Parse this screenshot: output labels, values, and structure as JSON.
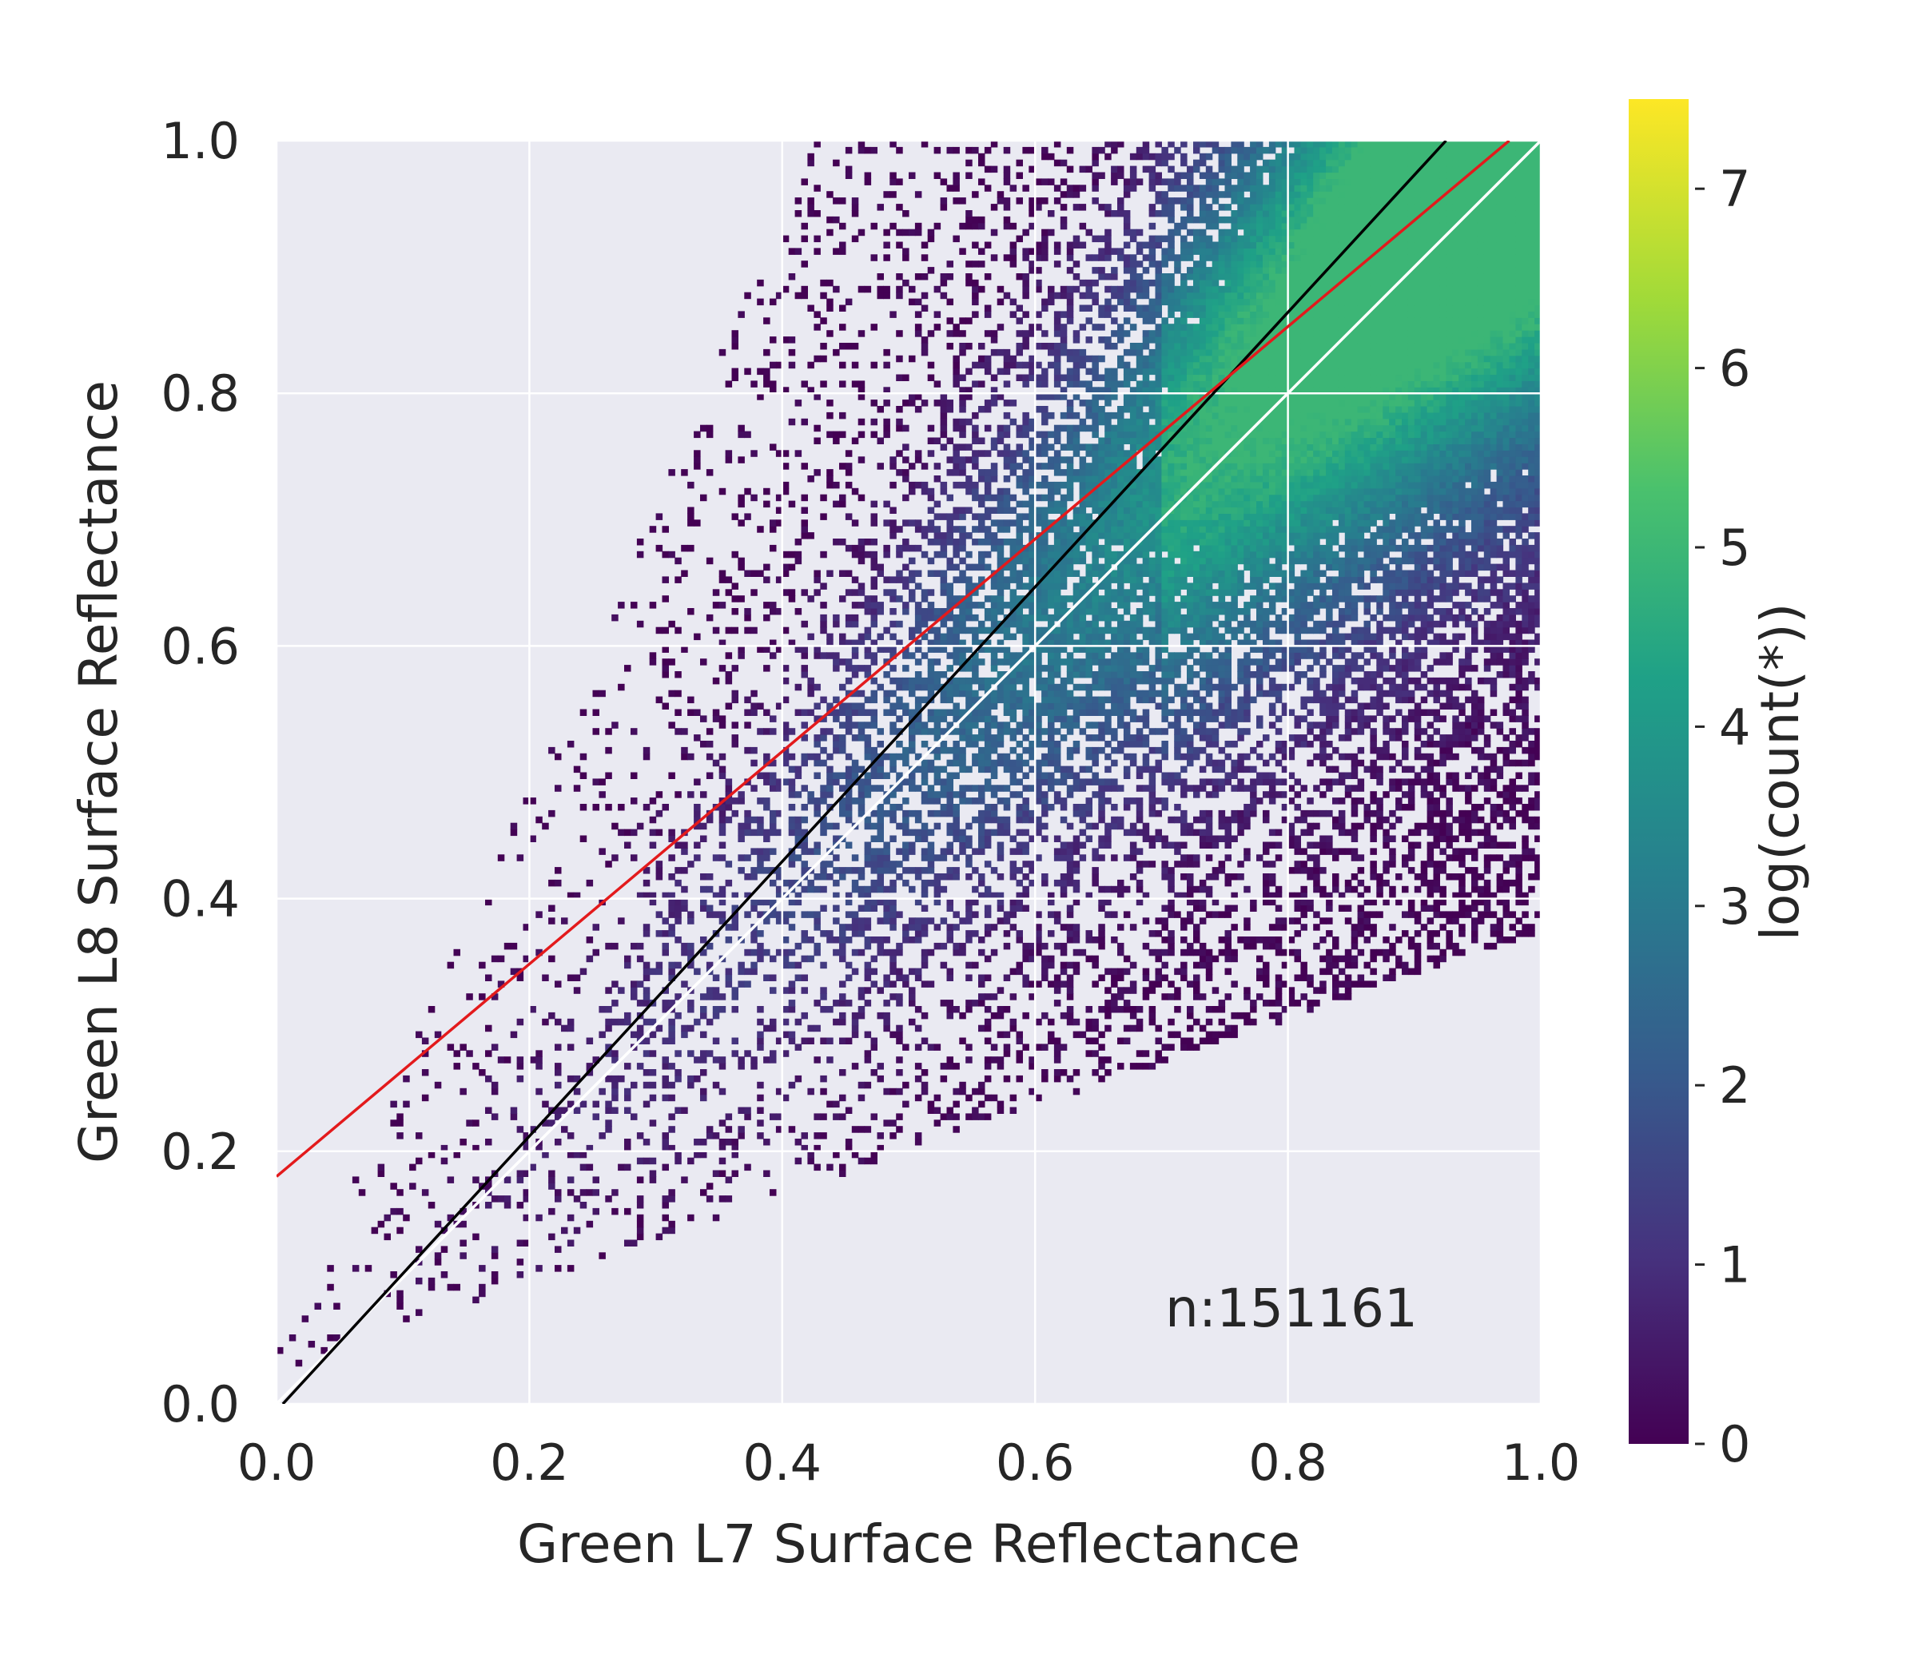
{
  "chart_data": {
    "type": "heatmap",
    "subtype": "hexbin-style 2D density with fitted lines",
    "xlabel": "Green L7 Surface Reflectance",
    "ylabel": "Green L8 Surface Reflectance",
    "xlim": [
      0.0,
      1.0
    ],
    "ylim": [
      0.0,
      1.0
    ],
    "x_ticks": [
      "0.0",
      "0.2",
      "0.4",
      "0.6",
      "0.8",
      "1.0"
    ],
    "y_ticks": [
      "0.0",
      "0.2",
      "0.4",
      "0.6",
      "0.8",
      "1.0"
    ],
    "x_tick_values": [
      0.0,
      0.2,
      0.4,
      0.6,
      0.8,
      1.0
    ],
    "y_tick_values": [
      0.0,
      0.2,
      0.4,
      0.6,
      0.8,
      1.0
    ],
    "grid": true,
    "annotation": "n:151161",
    "colorbar": {
      "label": "log(count(*))",
      "range": [
        0,
        7.5
      ],
      "ticks": [
        "0",
        "1",
        "2",
        "3",
        "4",
        "5",
        "6",
        "7"
      ],
      "tick_values": [
        0,
        1,
        2,
        3,
        4,
        5,
        6,
        7
      ],
      "colormap": "viridis"
    },
    "lines": [
      {
        "name": "one-to-one",
        "color": "#ffffff",
        "points": [
          [
            0.0,
            0.0
          ],
          [
            1.0,
            1.0
          ]
        ]
      },
      {
        "name": "black-fit",
        "color": "#000000",
        "points": [
          [
            0.005,
            0.0
          ],
          [
            0.925,
            1.0
          ]
        ]
      },
      {
        "name": "red-fit",
        "color": "#e31a1c",
        "points": [
          [
            0.0,
            0.18
          ],
          [
            0.975,
            1.0
          ]
        ]
      }
    ],
    "density_model": {
      "ridge_center": "y ≈ 1.04·x",
      "peak_log_count": 5.0
    }
  },
  "colors": {
    "plot_background": "#eaeaf2",
    "grid": "#ffffff"
  }
}
